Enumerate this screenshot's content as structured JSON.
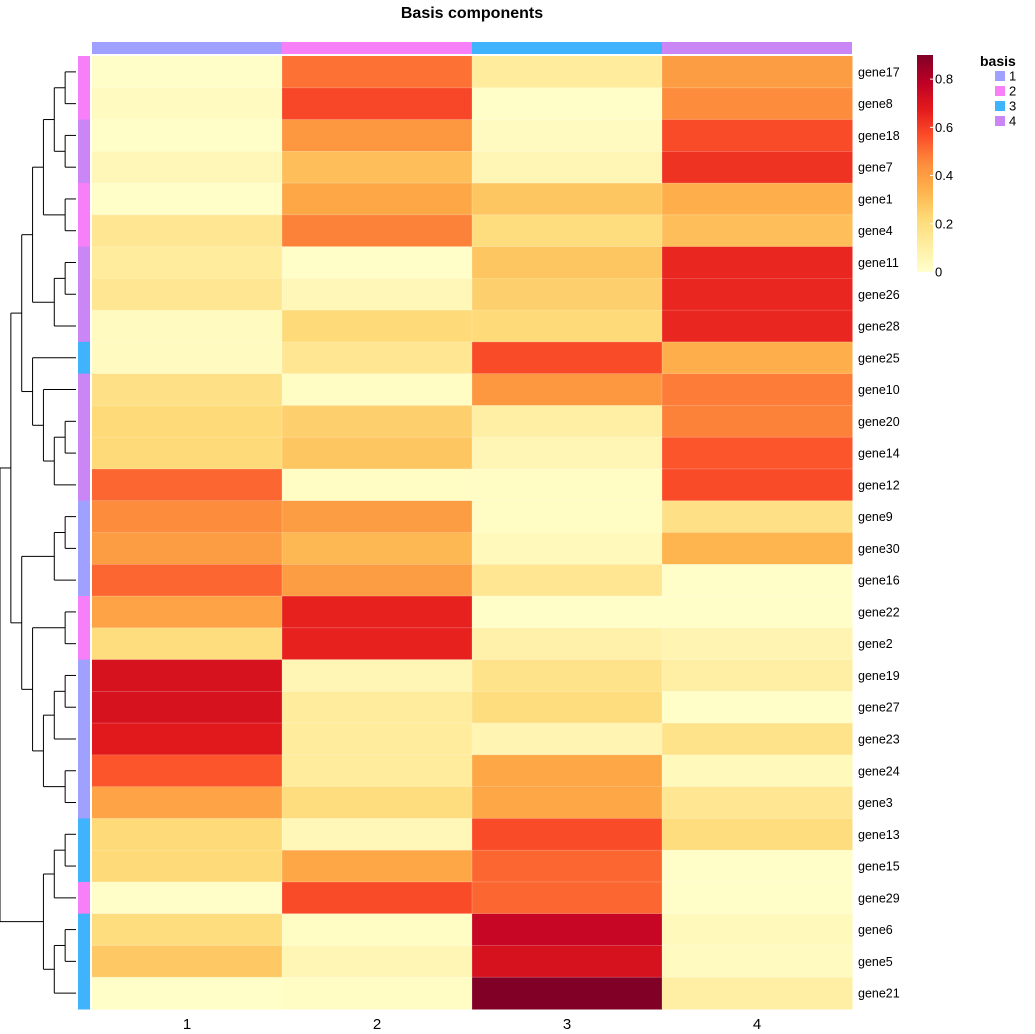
{
  "chart_data": {
    "type": "heatmap",
    "title": "Basis components",
    "columns": [
      "1",
      "2",
      "3",
      "4"
    ],
    "column_basis": [
      "1",
      "2",
      "3",
      "4"
    ],
    "rows": [
      "gene17",
      "gene8",
      "gene18",
      "gene7",
      "gene1",
      "gene4",
      "gene11",
      "gene26",
      "gene28",
      "gene25",
      "gene10",
      "gene20",
      "gene14",
      "gene12",
      "gene9",
      "gene30",
      "gene16",
      "gene22",
      "gene2",
      "gene19",
      "gene27",
      "gene23",
      "gene24",
      "gene3",
      "gene13",
      "gene15",
      "gene29",
      "gene6",
      "gene5",
      "gene21"
    ],
    "row_basis": [
      "2",
      "2",
      "4",
      "4",
      "2",
      "2",
      "4",
      "4",
      "4",
      "3",
      "4",
      "4",
      "4",
      "4",
      "1",
      "1",
      "1",
      "2",
      "2",
      "1",
      "1",
      "1",
      "1",
      "1",
      "3",
      "3",
      "2",
      "3",
      "3",
      "3"
    ],
    "values": [
      [
        0.01,
        0.5,
        0.12,
        0.4
      ],
      [
        0.03,
        0.58,
        0.01,
        0.45
      ],
      [
        0.01,
        0.42,
        0.03,
        0.57
      ],
      [
        0.05,
        0.3,
        0.06,
        0.62
      ],
      [
        0.01,
        0.37,
        0.28,
        0.35
      ],
      [
        0.15,
        0.47,
        0.2,
        0.3
      ],
      [
        0.12,
        0.01,
        0.28,
        0.65
      ],
      [
        0.15,
        0.05,
        0.25,
        0.65
      ],
      [
        0.03,
        0.22,
        0.22,
        0.65
      ],
      [
        0.03,
        0.15,
        0.57,
        0.35
      ],
      [
        0.18,
        0.02,
        0.42,
        0.48
      ],
      [
        0.22,
        0.25,
        0.1,
        0.47
      ],
      [
        0.22,
        0.28,
        0.06,
        0.55
      ],
      [
        0.52,
        0.02,
        0.02,
        0.57
      ],
      [
        0.45,
        0.4,
        0.02,
        0.18
      ],
      [
        0.4,
        0.32,
        0.04,
        0.33
      ],
      [
        0.52,
        0.4,
        0.15,
        0.01
      ],
      [
        0.38,
        0.66,
        0.01,
        0.01
      ],
      [
        0.2,
        0.66,
        0.09,
        0.07
      ],
      [
        0.71,
        0.06,
        0.17,
        0.1
      ],
      [
        0.71,
        0.12,
        0.2,
        0.01
      ],
      [
        0.68,
        0.12,
        0.07,
        0.17
      ],
      [
        0.55,
        0.12,
        0.37,
        0.04
      ],
      [
        0.38,
        0.2,
        0.37,
        0.15
      ],
      [
        0.22,
        0.05,
        0.57,
        0.2
      ],
      [
        0.22,
        0.37,
        0.52,
        0.01
      ],
      [
        0.01,
        0.57,
        0.52,
        0.01
      ],
      [
        0.2,
        0.02,
        0.76,
        0.04
      ],
      [
        0.27,
        0.06,
        0.71,
        0.03
      ],
      [
        0.01,
        0.02,
        0.9,
        0.1
      ]
    ],
    "color_scale": {
      "range": [
        0,
        0.9
      ],
      "ticks": [
        "0",
        "0.2",
        "0.4",
        "0.6",
        "0.8"
      ],
      "tick_values": [
        0,
        0.2,
        0.4,
        0.6,
        0.8
      ],
      "colors": [
        "#FFFFCC",
        "#FFEDA0",
        "#FED976",
        "#FEB24C",
        "#FD8D3C",
        "#FC4E2A",
        "#E31A1C",
        "#BD0026",
        "#800026"
      ]
    },
    "legend": {
      "title": "basis",
      "items": [
        {
          "label": "1",
          "color": "#A0A0FF"
        },
        {
          "label": "2",
          "color": "#F77FF7"
        },
        {
          "label": "3",
          "color": "#3FB4FC"
        },
        {
          "label": "4",
          "color": "#CB86F6"
        }
      ]
    },
    "dendrogram": "rows"
  }
}
